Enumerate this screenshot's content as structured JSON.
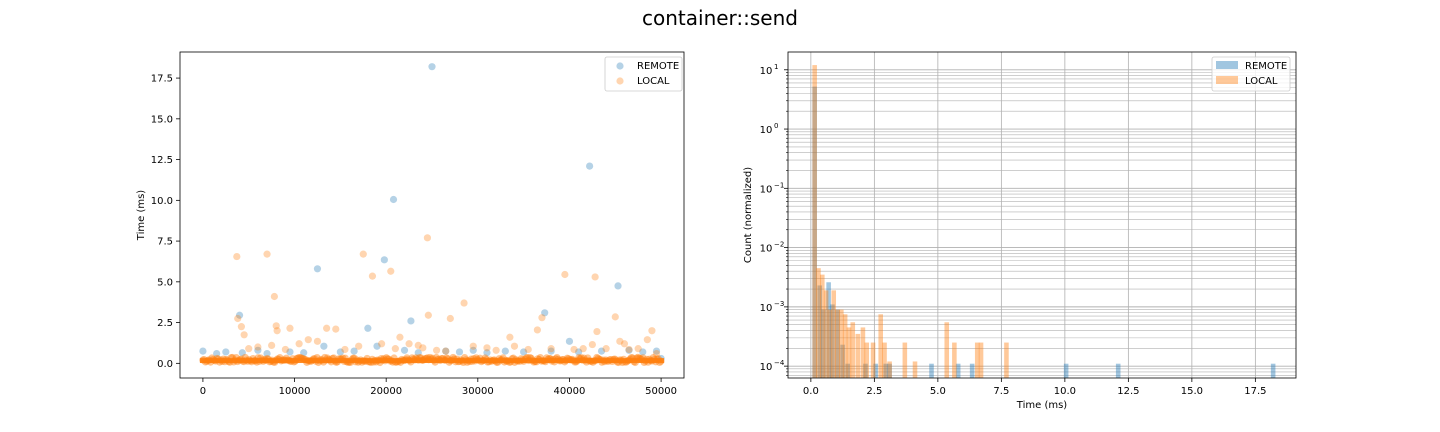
{
  "figure": {
    "title": "container::send"
  },
  "colors": {
    "remote": "#1f77b4",
    "local": "#ff7f0e",
    "grid": "#b0b0b0",
    "axis": "#000000"
  },
  "chart_data": [
    {
      "type": "scatter",
      "title": "",
      "xlabel": "",
      "ylabel": "Time (ms)",
      "xlim": [
        -2500,
        52500
      ],
      "ylim": [
        -0.9,
        19.1
      ],
      "xticks": [
        0,
        10000,
        20000,
        30000,
        40000,
        50000
      ],
      "xtick_labels": [
        "0",
        "10000",
        "20000",
        "30000",
        "40000",
        "50000"
      ],
      "yticks": [
        0.0,
        2.5,
        5.0,
        7.5,
        10.0,
        12.5,
        15.0,
        17.5
      ],
      "ytick_labels": [
        "0.0",
        "2.5",
        "5.0",
        "7.5",
        "10.0",
        "12.5",
        "15.0",
        "17.5"
      ],
      "grid": false,
      "legend": "top-right",
      "series": [
        {
          "name": "REMOTE",
          "points": [
            [
              0,
              0.75
            ],
            [
              1500,
              0.6
            ],
            [
              2500,
              0.7
            ],
            [
              4000,
              2.95
            ],
            [
              4300,
              0.65
            ],
            [
              6000,
              0.8
            ],
            [
              7000,
              0.6
            ],
            [
              9500,
              0.7
            ],
            [
              11000,
              0.65
            ],
            [
              12500,
              5.8
            ],
            [
              13200,
              1.05
            ],
            [
              15000,
              0.7
            ],
            [
              16500,
              0.75
            ],
            [
              18000,
              2.15
            ],
            [
              19000,
              1.05
            ],
            [
              19800,
              6.35
            ],
            [
              20800,
              10.05
            ],
            [
              22000,
              0.8
            ],
            [
              22700,
              2.6
            ],
            [
              23500,
              0.65
            ],
            [
              25000,
              18.2
            ],
            [
              26500,
              0.75
            ],
            [
              28000,
              0.7
            ],
            [
              29500,
              0.8
            ],
            [
              31000,
              0.65
            ],
            [
              33000,
              0.75
            ],
            [
              35000,
              0.7
            ],
            [
              37300,
              3.1
            ],
            [
              38000,
              0.75
            ],
            [
              40000,
              1.35
            ],
            [
              41000,
              0.7
            ],
            [
              42200,
              12.1
            ],
            [
              43500,
              0.75
            ],
            [
              45300,
              4.75
            ],
            [
              46500,
              0.8
            ],
            [
              48000,
              0.7
            ],
            [
              49500,
              0.75
            ],
            [
              50000,
              0.3
            ]
          ]
        },
        {
          "name": "LOCAL",
          "points": [
            [
              3700,
              6.55
            ],
            [
              3800,
              2.75
            ],
            [
              4200,
              2.25
            ],
            [
              4500,
              1.75
            ],
            [
              5000,
              0.9
            ],
            [
              6000,
              1.0
            ],
            [
              7000,
              6.7
            ],
            [
              7500,
              1.1
            ],
            [
              7800,
              4.1
            ],
            [
              8000,
              2.3
            ],
            [
              8100,
              2.0
            ],
            [
              9000,
              0.85
            ],
            [
              9500,
              2.15
            ],
            [
              10500,
              1.2
            ],
            [
              11500,
              1.45
            ],
            [
              12500,
              1.35
            ],
            [
              13500,
              2.15
            ],
            [
              14500,
              2.1
            ],
            [
              15500,
              0.85
            ],
            [
              17000,
              1.05
            ],
            [
              17500,
              6.7
            ],
            [
              18500,
              5.35
            ],
            [
              19500,
              1.2
            ],
            [
              20500,
              5.65
            ],
            [
              21000,
              0.9
            ],
            [
              21500,
              1.6
            ],
            [
              22500,
              1.2
            ],
            [
              23500,
              1.1
            ],
            [
              24000,
              0.95
            ],
            [
              24500,
              7.7
            ],
            [
              24600,
              2.95
            ],
            [
              25500,
              0.8
            ],
            [
              26500,
              0.75
            ],
            [
              27000,
              2.75
            ],
            [
              28500,
              3.7
            ],
            [
              29500,
              1.05
            ],
            [
              31000,
              0.95
            ],
            [
              32000,
              0.8
            ],
            [
              33500,
              1.6
            ],
            [
              34000,
              1.05
            ],
            [
              35500,
              0.85
            ],
            [
              36500,
              2.05
            ],
            [
              37000,
              2.8
            ],
            [
              38000,
              0.9
            ],
            [
              39500,
              5.45
            ],
            [
              40500,
              0.85
            ],
            [
              41500,
              0.9
            ],
            [
              42500,
              1.15
            ],
            [
              42800,
              5.3
            ],
            [
              43000,
              1.95
            ],
            [
              44000,
              0.9
            ],
            [
              45000,
              2.85
            ],
            [
              45500,
              1.35
            ],
            [
              46000,
              1.2
            ],
            [
              46500,
              0.85
            ],
            [
              47500,
              0.9
            ],
            [
              48500,
              1.45
            ],
            [
              49000,
              2.0
            ],
            [
              49500,
              0.6
            ]
          ],
          "dense_band": {
            "x_range": [
              0,
              50000
            ],
            "y_range": [
              0.05,
              0.5
            ],
            "note_value": 0.15
          }
        }
      ]
    },
    {
      "type": "bar",
      "title": "",
      "xlabel": "Time (ms)",
      "ylabel": "Count (normalized)",
      "xlim": [
        -0.9,
        19.1
      ],
      "ylim_log10": [
        -4.2,
        1.3
      ],
      "yscale": "log",
      "xticks": [
        0.0,
        2.5,
        5.0,
        7.5,
        10.0,
        12.5,
        15.0,
        17.5
      ],
      "xtick_labels": [
        "0.0",
        "2.5",
        "5.0",
        "7.5",
        "10.0",
        "12.5",
        "15.0",
        "17.5"
      ],
      "yticks_log10": [
        -4,
        -3,
        -2,
        -1,
        0,
        1
      ],
      "ytick_labels": [
        "10",
        "10",
        "10",
        "10",
        "10",
        "10"
      ],
      "ytick_exponents": [
        "−4",
        "−3",
        "−2",
        "−1",
        "0",
        "1"
      ],
      "grid": true,
      "legend": "top-right",
      "bin_width": 0.18,
      "series": [
        {
          "name": "REMOTE",
          "bins": [
            [
              0.15,
              5.2
            ],
            [
              0.35,
              0.0023
            ],
            [
              0.5,
              0.0009
            ],
            [
              0.7,
              0.0026
            ],
            [
              0.85,
              0.0011
            ],
            [
              1.05,
              0.0009
            ],
            [
              1.25,
              0.00023
            ],
            [
              1.45,
              0.00011
            ],
            [
              2.15,
              0.00011
            ],
            [
              2.55,
              0.00011
            ],
            [
              2.95,
              0.00011
            ],
            [
              3.1,
              0.00011
            ],
            [
              4.75,
              0.00011
            ],
            [
              5.8,
              0.00011
            ],
            [
              6.35,
              0.00011
            ],
            [
              10.05,
              0.00011
            ],
            [
              12.1,
              0.00011
            ],
            [
              18.2,
              0.00011
            ]
          ]
        },
        {
          "name": "LOCAL",
          "bins": [
            [
              0.15,
              12.0
            ],
            [
              0.3,
              0.0045
            ],
            [
              0.45,
              0.0035
            ],
            [
              0.6,
              0.0019
            ],
            [
              0.75,
              0.0009
            ],
            [
              0.9,
              0.0019
            ],
            [
              1.05,
              0.0009
            ],
            [
              1.2,
              0.0009
            ],
            [
              1.35,
              0.00075
            ],
            [
              1.5,
              0.00045
            ],
            [
              1.65,
              0.00055
            ],
            [
              1.85,
              0.00035
            ],
            [
              2.05,
              0.00045
            ],
            [
              2.2,
              0.00025
            ],
            [
              2.45,
              0.00025
            ],
            [
              2.75,
              0.00075
            ],
            [
              2.9,
              0.00025
            ],
            [
              3.1,
              0.00012
            ],
            [
              3.7,
              0.00025
            ],
            [
              4.1,
              0.00012
            ],
            [
              5.35,
              0.00055
            ],
            [
              5.65,
              0.00025
            ],
            [
              6.55,
              0.00025
            ],
            [
              6.7,
              0.00025
            ],
            [
              7.7,
              0.00025
            ]
          ]
        }
      ]
    }
  ]
}
